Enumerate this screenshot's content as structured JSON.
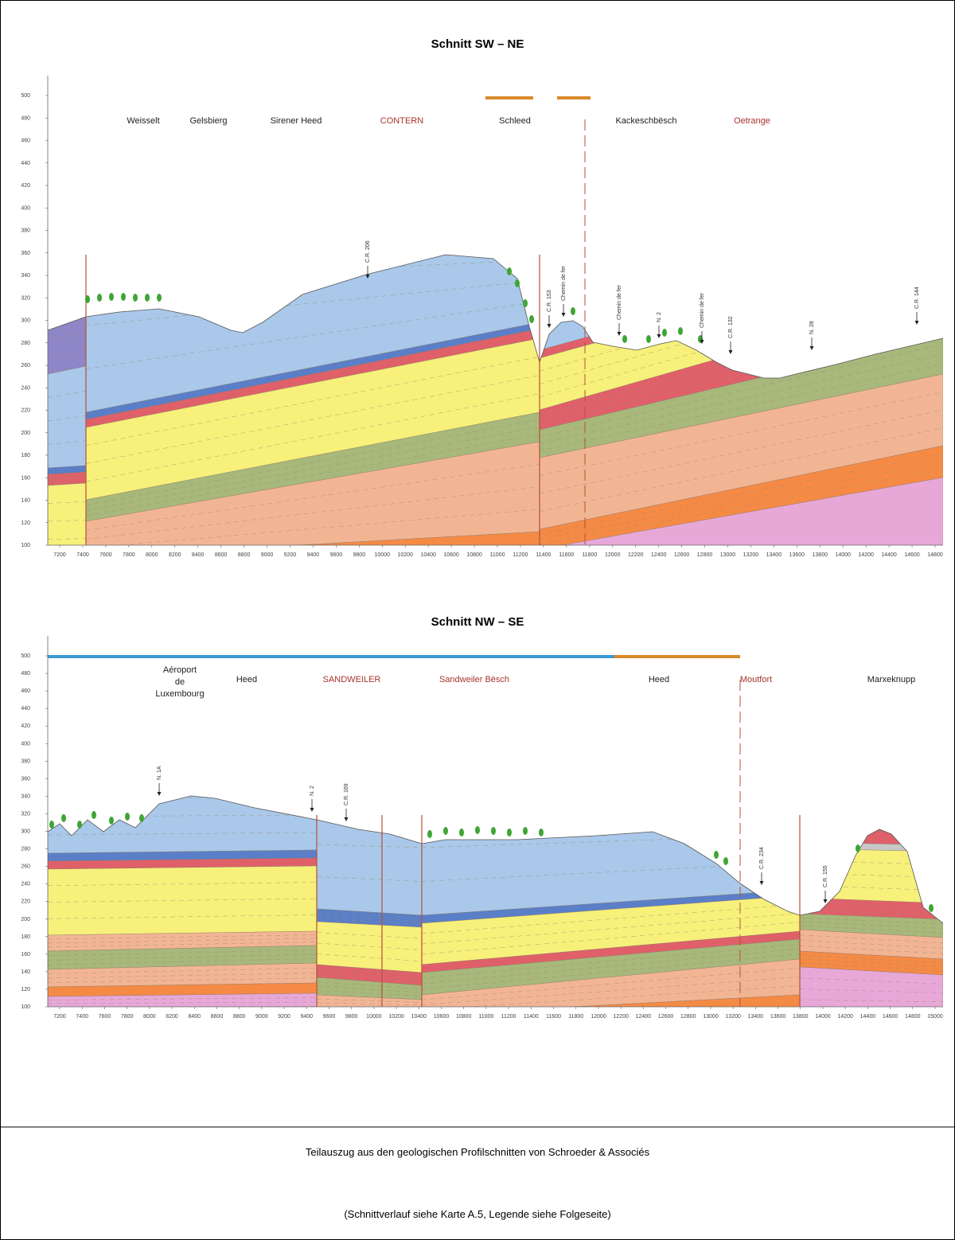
{
  "sections": [
    {
      "title": "Schnitt SW – NE",
      "places": [
        {
          "label": "Weisselt",
          "color": "#222222"
        },
        {
          "label": "Gelsbierg",
          "color": "#222222"
        },
        {
          "label": "Sirener Heed",
          "color": "#222222"
        },
        {
          "label": "CONTERN",
          "color": "#a8332d"
        },
        {
          "label": "Schleed",
          "color": "#222222"
        },
        {
          "label": "Kackeschbësch",
          "color": "#222222"
        },
        {
          "label": "Oetrange",
          "color": "#a8332d"
        }
      ],
      "annotations": [
        "C.R. 206",
        "C.R. 153",
        "Chemin de fer",
        "Chemin de fer",
        "N. 2",
        "Chemin de fer",
        "C.R. 132",
        "N. 28",
        "C.R. 144"
      ],
      "y_ticks": [
        100,
        120,
        140,
        160,
        180,
        200,
        220,
        240,
        260,
        280,
        300,
        320,
        340,
        360,
        380,
        400,
        420,
        440,
        460,
        480,
        500
      ],
      "x_ticks": [
        7200,
        7400,
        7600,
        7800,
        8000,
        8200,
        8400,
        8600,
        8800,
        9000,
        9200,
        9400,
        9600,
        9800,
        10000,
        10200,
        10400,
        10600,
        10800,
        11000,
        11200,
        11400,
        11600,
        11800,
        12000,
        12200,
        12400,
        12600,
        12800,
        13000,
        13200,
        13400,
        13600,
        13800,
        14000,
        14200,
        14400,
        14600,
        14800
      ]
    },
    {
      "title": "Schnitt NW – SE",
      "places": [
        {
          "label": "Aéroport",
          "color": "#222222"
        },
        {
          "label": "de",
          "color": "#222222"
        },
        {
          "label": "Luxembourg",
          "color": "#222222"
        },
        {
          "label": "Heed",
          "color": "#222222"
        },
        {
          "label": "SANDWEILER",
          "color": "#a8332d"
        },
        {
          "label": "Sandweiler Bësch",
          "color": "#a8332d"
        },
        {
          "label": "Heed",
          "color": "#222222"
        },
        {
          "label": "Moutfort",
          "color": "#a8332d"
        },
        {
          "label": "Marxeknupp",
          "color": "#222222"
        }
      ],
      "annotations": [
        "N. 1A",
        "N. 2",
        "C.R. 169",
        "C.R. 234",
        "C.R. 155"
      ],
      "y_ticks": [
        100,
        120,
        140,
        160,
        180,
        200,
        220,
        240,
        260,
        280,
        300,
        320,
        340,
        360,
        380,
        400,
        420,
        440,
        460,
        480,
        500
      ],
      "x_ticks": [
        7200,
        7400,
        7600,
        7800,
        8000,
        8200,
        8400,
        8600,
        8800,
        9000,
        9200,
        9400,
        9600,
        9800,
        10000,
        10200,
        10400,
        10600,
        10800,
        11000,
        11200,
        11400,
        11600,
        11800,
        12000,
        12200,
        12400,
        12600,
        12800,
        13000,
        13200,
        13400,
        13600,
        13800,
        14000,
        14200,
        14400,
        14600,
        14800,
        15000
      ]
    }
  ],
  "caption": {
    "line1": "Teilauszug aus den geologischen Profilschnitten von Schroeder & Associés",
    "line2": "(Schnittverlauf siehe Karte A.5, Legende siehe Folgeseite)"
  }
}
